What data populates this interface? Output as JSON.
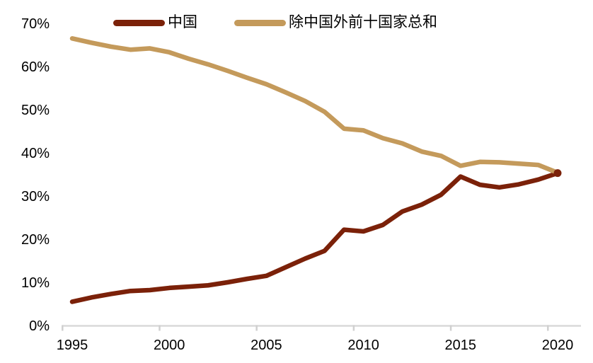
{
  "chart_data": {
    "type": "line",
    "title": "",
    "xlabel": "",
    "ylabel": "",
    "x": [
      1995,
      1996,
      1997,
      1998,
      1999,
      2000,
      2001,
      2002,
      2003,
      2004,
      2005,
      2006,
      2007,
      2008,
      2009,
      2010,
      2011,
      2012,
      2013,
      2014,
      2015,
      2016,
      2017,
      2018,
      2019,
      2020
    ],
    "series": [
      {
        "name": "中国",
        "color": "#7b2109",
        "values": [
          5.5,
          6.5,
          7.3,
          8.0,
          8.2,
          8.7,
          9.0,
          9.3,
          10.0,
          10.8,
          11.5,
          13.5,
          15.5,
          17.3,
          22.2,
          21.8,
          23.3,
          26.4,
          28.0,
          30.3,
          34.5,
          32.6,
          32.0,
          32.7,
          33.8,
          35.3
        ]
      },
      {
        "name": "除中国外前十国家总和",
        "color": "#c49a5b",
        "values": [
          66.5,
          65.5,
          64.6,
          63.9,
          64.2,
          63.3,
          61.8,
          60.5,
          59.0,
          57.4,
          55.9,
          54.0,
          52.0,
          49.5,
          45.6,
          45.2,
          43.4,
          42.2,
          40.3,
          39.3,
          37.0,
          37.9,
          37.8,
          37.5,
          37.2,
          35.4
        ]
      }
    ],
    "yticks": [
      "0",
      "10",
      "20",
      "30",
      "40",
      "50",
      "60",
      "70"
    ],
    "ytick_suffix": "%",
    "xticks": [
      "1995",
      "2000",
      "2005",
      "2010",
      "2015",
      "2020"
    ],
    "ylim": [
      0,
      70
    ],
    "grid": false,
    "legend_position": "top",
    "endpoint_dot": {
      "series": "中国",
      "year": "2020"
    },
    "colors": {
      "axis": "#d9d9d9",
      "tick": "#d0d0d0",
      "text": "#000000",
      "background": "#ffffff"
    }
  }
}
